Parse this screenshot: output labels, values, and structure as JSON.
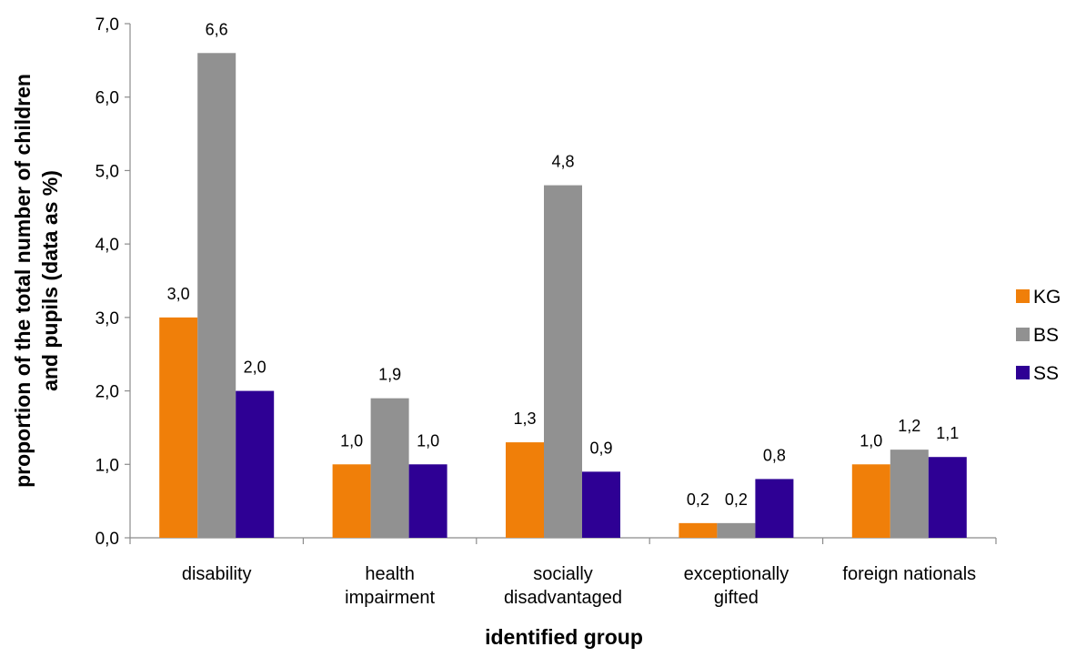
{
  "chart_data": {
    "type": "bar",
    "categories": [
      [
        "disability"
      ],
      [
        "health",
        "impairment"
      ],
      [
        "socially",
        "disadvantaged"
      ],
      [
        "exceptionally",
        "gifted"
      ],
      [
        "foreign nationals"
      ]
    ],
    "series": [
      {
        "name": "KG",
        "color": "#F07F09",
        "values": [
          3.0,
          1.0,
          1.3,
          0.2,
          1.0
        ],
        "labels": [
          "3,0",
          "1,0",
          "1,3",
          "0,2",
          "1,0"
        ]
      },
      {
        "name": "BS",
        "color": "#919191",
        "values": [
          6.6,
          1.9,
          4.8,
          0.2,
          1.2
        ],
        "labels": [
          "6,6",
          "1,9",
          "4,8",
          "0,2",
          "1,2"
        ]
      },
      {
        "name": "SS",
        "color": "#2E0094",
        "values": [
          2.0,
          1.0,
          0.9,
          0.8,
          1.1
        ],
        "labels": [
          "2,0",
          "1,0",
          "0,9",
          "0,8",
          "1,1"
        ]
      }
    ],
    "yticks": [
      0,
      1,
      2,
      3,
      4,
      5,
      6,
      7
    ],
    "ytick_labels": [
      "0,0",
      "1,0",
      "2,0",
      "3,0",
      "4,0",
      "5,0",
      "6,0",
      "7,0"
    ],
    "ylim": [
      0,
      7
    ],
    "xlabel": "identified group",
    "ylabel_lines": [
      "proportion of the total number of children",
      "and pupils (data as %)"
    ],
    "legend_position": "right",
    "grid": false
  }
}
